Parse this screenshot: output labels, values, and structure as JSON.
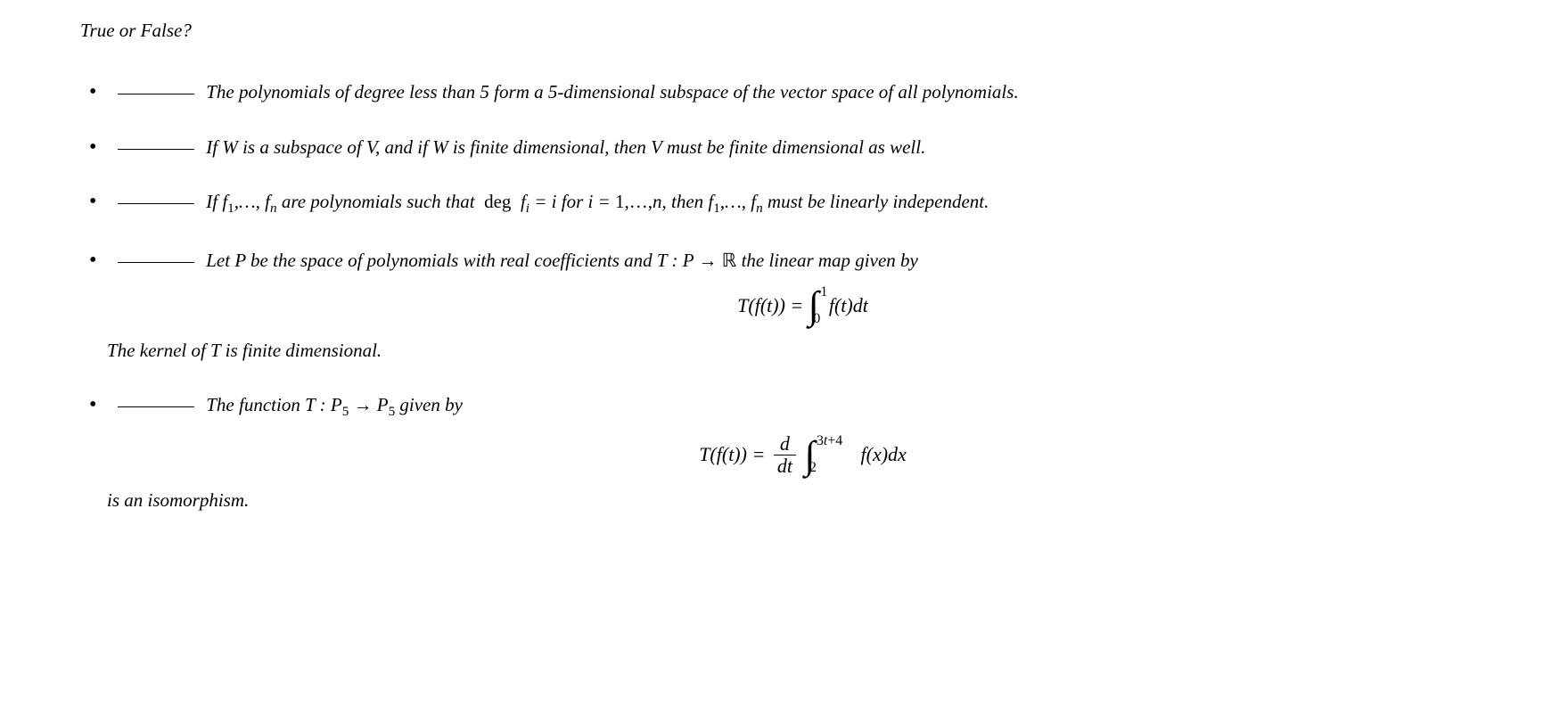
{
  "header": {
    "title": "True or False?"
  },
  "items": [
    {
      "text_html": "The polynomials of degree less than 5 form a 5-dimensional subspace of the vector space of all polynomials."
    },
    {
      "text_html": "If W is a subspace of V, and if W is finite dimensional, then V must be finite dimensional as well."
    },
    {
      "text_html": "If f<span class=\"sub\">1</span>,&hellip;, f<span class=\"subm\">n</span> are polynomials such that &nbsp;<span class=\"rm\">deg</span>&nbsp; f<span class=\"subm\">i</span> = i for i = <span class=\"rm\">1,&hellip;,</span>n, then f<span class=\"sub\">1</span>,&hellip;, f<span class=\"subm\">n</span> must be linearly independent."
    },
    {
      "text_html": "Let P be the space of polynomials with real coefficients and T : P &rarr; <span class=\"bb\">&#8477;</span> the linear map given by",
      "formula": {
        "lhs": "T(f(t)) = ",
        "int_lower": "0",
        "int_upper": "1",
        "integrand": "f(t)dt"
      },
      "continuation": "The kernel of T is finite dimensional."
    },
    {
      "text_html": "The function T : P<span class=\"sub\">5</span> &rarr; P<span class=\"sub\">5</span> given by",
      "formula2": {
        "lhs": "T(f(t)) = ",
        "frac_num": "d",
        "frac_den": "dt",
        "int_lower": "2",
        "int_upper_html": "3<span class=\"math\">t</span>+4",
        "integrand": "f(x)dx"
      },
      "continuation": "is an isomorphism."
    }
  ]
}
